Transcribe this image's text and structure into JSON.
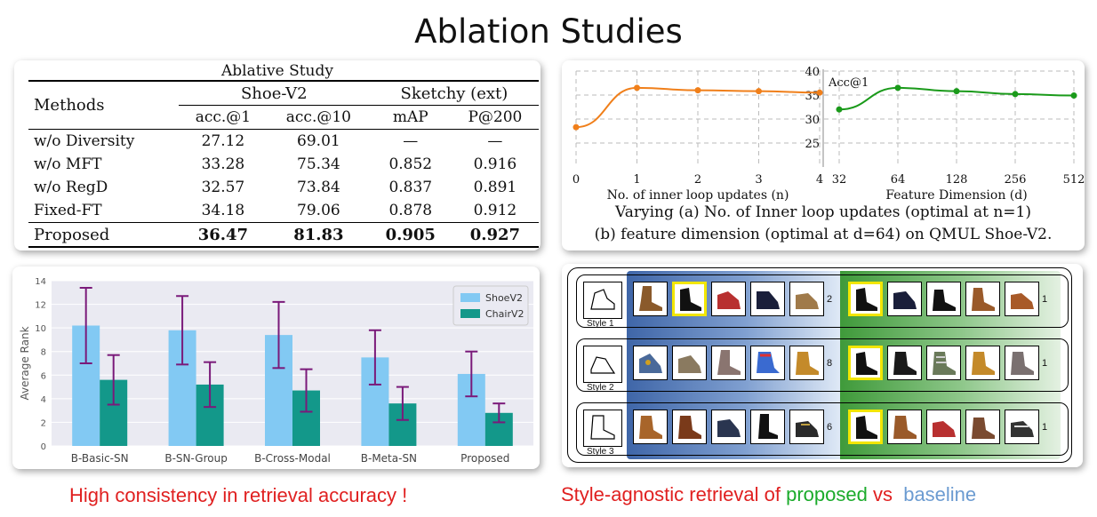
{
  "title": "Ablation Studies",
  "table": {
    "caption": "Ablative Study",
    "methods_header": "Methods",
    "group1": "Shoe-V2",
    "group2": "Sketchy (ext)",
    "columns": [
      "acc.@1",
      "acc.@10",
      "mAP",
      "P@200"
    ],
    "rows": [
      {
        "method": "w/o Diversity",
        "values": [
          "27.12",
          "69.01",
          "—",
          "—"
        ]
      },
      {
        "method": "w/o MFT",
        "values": [
          "33.28",
          "75.34",
          "0.852",
          "0.916"
        ]
      },
      {
        "method": "w/o RegD",
        "values": [
          "32.57",
          "73.84",
          "0.837",
          "0.891"
        ]
      },
      {
        "method": "Fixed-FT",
        "values": [
          "34.18",
          "79.06",
          "0.878",
          "0.912"
        ]
      }
    ],
    "proposed": {
      "method": "Proposed",
      "values": [
        "36.47",
        "81.83",
        "0.905",
        "0.927"
      ]
    }
  },
  "chart_data": [
    {
      "type": "line",
      "ylabel": "Acc@1",
      "xlabel": "No. of inner loop updates (n)",
      "x": [
        0,
        1,
        2,
        3,
        4
      ],
      "series": [
        {
          "values": [
            28.3,
            36.5,
            36.0,
            35.8,
            35.5
          ],
          "color": "#f07f1a"
        }
      ],
      "ylim": [
        20,
        40
      ],
      "yticks": [
        25,
        30,
        35,
        40
      ],
      "grid": true
    },
    {
      "type": "line",
      "ylabel": "Acc@1",
      "xlabel": "Feature Dimension (d)",
      "x": [
        32,
        64,
        128,
        256,
        512
      ],
      "series": [
        {
          "values": [
            32.0,
            36.5,
            35.8,
            35.2,
            34.9
          ],
          "color": "#1a9a1a"
        }
      ],
      "ylim": [
        20,
        40
      ],
      "yticks": [
        25,
        30,
        35,
        40
      ],
      "grid": true
    },
    {
      "type": "bar",
      "ylabel": "Average Rank",
      "categories": [
        "B-Basic-SN",
        "B-SN-Group",
        "B-Cross-Modal",
        "B-Meta-SN",
        "Proposed"
      ],
      "series": [
        {
          "name": "ShoeV2",
          "color": "#82c9f3",
          "values": [
            10.2,
            9.8,
            9.4,
            7.5,
            6.1
          ],
          "err": [
            3.2,
            2.9,
            2.8,
            2.3,
            1.9
          ]
        },
        {
          "name": "ChairV2",
          "color": "#13988a",
          "values": [
            5.6,
            5.2,
            4.7,
            3.6,
            2.8
          ],
          "err": [
            2.1,
            1.9,
            1.8,
            1.4,
            0.8
          ]
        }
      ],
      "ylim": [
        0,
        14
      ],
      "yticks": [
        0,
        2,
        4,
        6,
        8,
        10,
        12,
        14
      ],
      "legend": "top-right",
      "grid": true
    }
  ],
  "line_caption": {
    "line1": "Varying (a) No. of Inner loop updates (optimal at n=1)",
    "line2": "(b) feature dimension (optimal at d=64) on QMUL Shoe-V2."
  },
  "bar_caption": "High consistency in retrieval accuracy !",
  "retrieval": {
    "rows": [
      {
        "style": "Style 1",
        "baseline_rank": "2",
        "proposed_rank": "1"
      },
      {
        "style": "Style 2",
        "baseline_rank": "8",
        "proposed_rank": "1"
      },
      {
        "style": "Style 3",
        "baseline_rank": "6",
        "proposed_rank": "1"
      }
    ],
    "caption": {
      "part1": "Style-agnostic retrieval of ",
      "part2": "proposed",
      "part3": " vs  ",
      "part4": "baseline"
    },
    "colors": {
      "red": "#e02020",
      "green": "#1bab2b",
      "blue": "#6b9bd1"
    }
  }
}
